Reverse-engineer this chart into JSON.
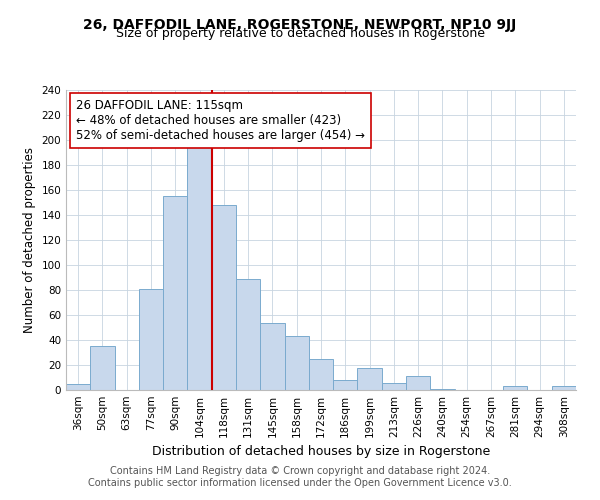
{
  "title": "26, DAFFODIL LANE, ROGERSTONE, NEWPORT, NP10 9JJ",
  "subtitle": "Size of property relative to detached houses in Rogerstone",
  "xlabel": "Distribution of detached houses by size in Rogerstone",
  "ylabel": "Number of detached properties",
  "bar_labels": [
    "36sqm",
    "50sqm",
    "63sqm",
    "77sqm",
    "90sqm",
    "104sqm",
    "118sqm",
    "131sqm",
    "145sqm",
    "158sqm",
    "172sqm",
    "186sqm",
    "199sqm",
    "213sqm",
    "226sqm",
    "240sqm",
    "254sqm",
    "267sqm",
    "281sqm",
    "294sqm",
    "308sqm"
  ],
  "bar_values": [
    5,
    35,
    0,
    81,
    155,
    201,
    148,
    89,
    54,
    43,
    25,
    8,
    18,
    6,
    11,
    1,
    0,
    0,
    3,
    0,
    3
  ],
  "bar_color": "#c8d8ec",
  "bar_edge_color": "#7aaace",
  "vline_x_index": 6,
  "vline_color": "#cc0000",
  "annotation_line1": "26 DAFFODIL LANE: 115sqm",
  "annotation_line2": "← 48% of detached houses are smaller (423)",
  "annotation_line3": "52% of semi-detached houses are larger (454) →",
  "annotation_box_color": "#ffffff",
  "annotation_box_edge": "#cc0000",
  "ylim": [
    0,
    240
  ],
  "yticks": [
    0,
    20,
    40,
    60,
    80,
    100,
    120,
    140,
    160,
    180,
    200,
    220,
    240
  ],
  "footer_line1": "Contains HM Land Registry data © Crown copyright and database right 2024.",
  "footer_line2": "Contains public sector information licensed under the Open Government Licence v3.0.",
  "title_fontsize": 10,
  "subtitle_fontsize": 9,
  "xlabel_fontsize": 9,
  "ylabel_fontsize": 8.5,
  "tick_fontsize": 7.5,
  "annotation_fontsize": 8.5,
  "footer_fontsize": 7
}
